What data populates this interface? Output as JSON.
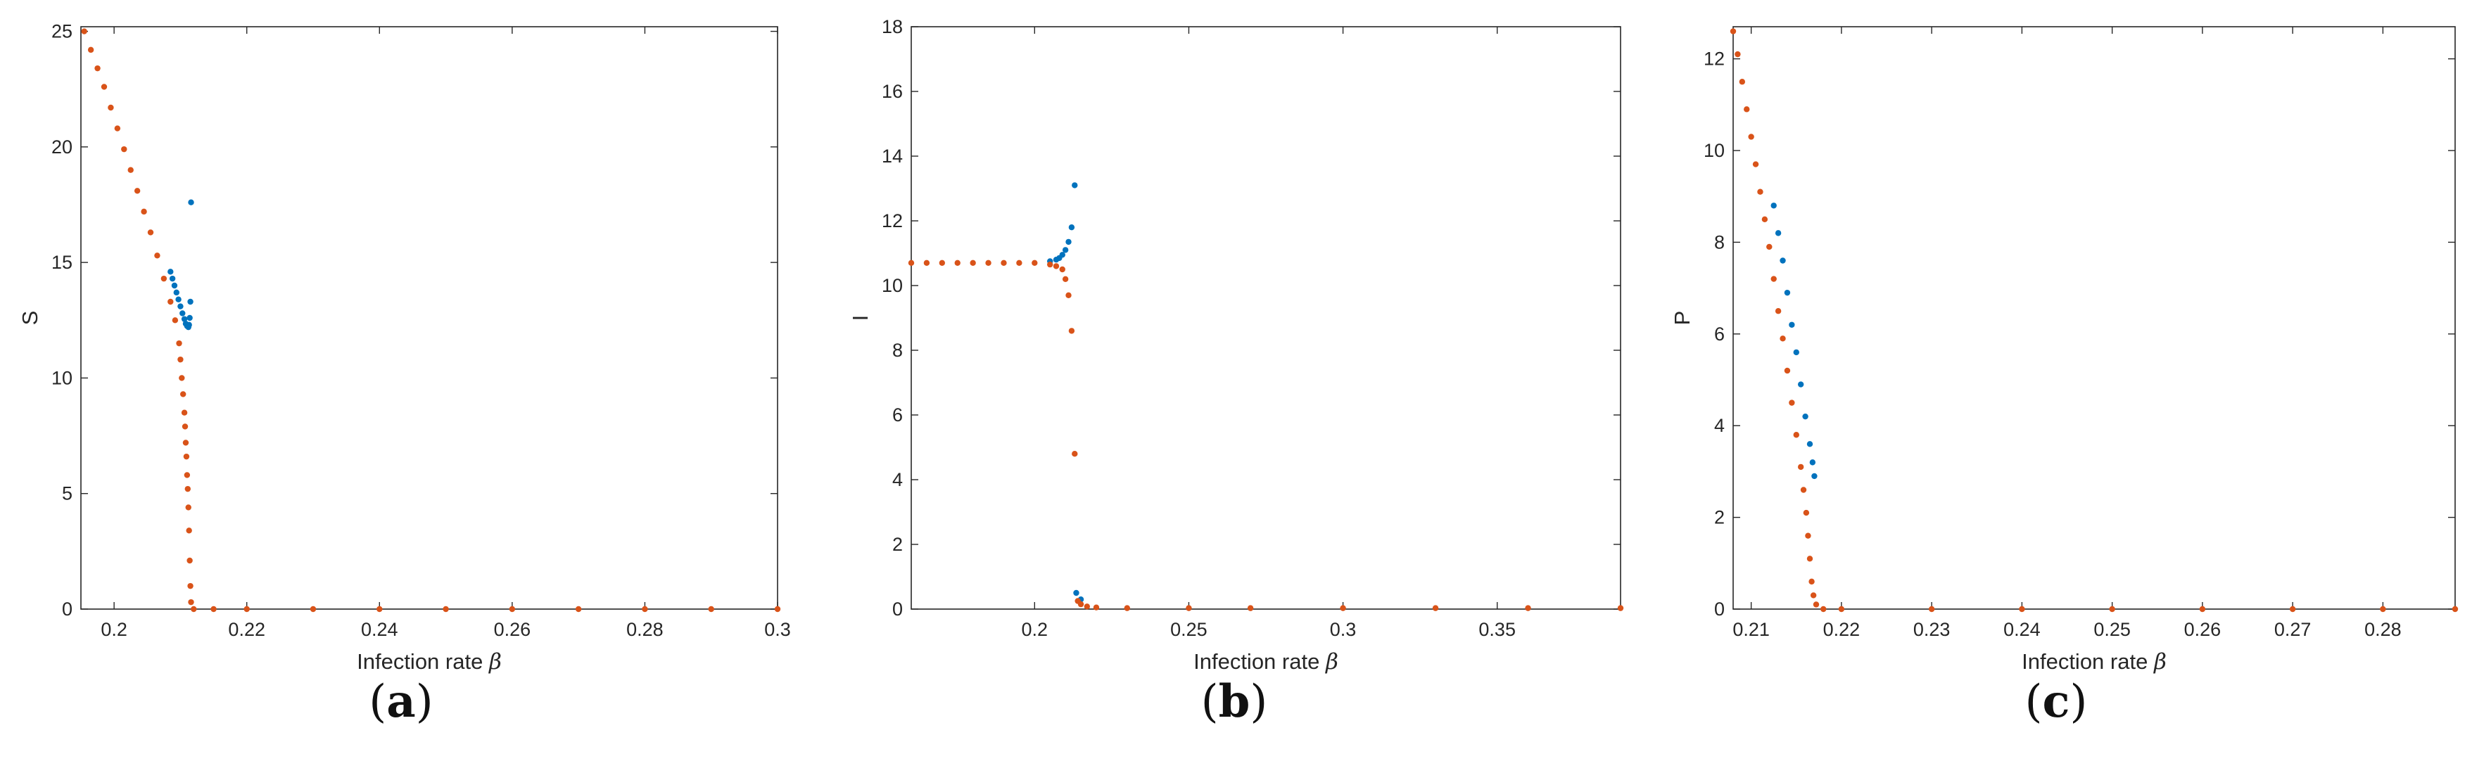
{
  "figure": {
    "colors": {
      "series_1": "#0072BD",
      "series_2": "#D95319",
      "axes": "#262626"
    }
  },
  "chart_data": [
    {
      "id": "a",
      "type": "scatter",
      "panel_label": "a",
      "xlabel": "Infection rate",
      "xlabel_symbol": "β",
      "ylabel": "S",
      "xlim": [
        0.195,
        0.3
      ],
      "ylim": [
        0,
        25.2
      ],
      "xticks": [
        0.2,
        0.22,
        0.24,
        0.26,
        0.28,
        0.3
      ],
      "xtick_labels": [
        "0.2",
        "0.22",
        "0.24",
        "0.26",
        "0.28",
        "0.3"
      ],
      "yticks": [
        0,
        5,
        10,
        15,
        20,
        25
      ],
      "ytick_labels": [
        "0",
        "5",
        "10",
        "15",
        "20",
        "25"
      ],
      "grid": false,
      "series": [
        {
          "color": "#0072BD",
          "x": [
            0.2085,
            0.2088,
            0.2091,
            0.2094,
            0.2097,
            0.21,
            0.2103,
            0.2106,
            0.2108,
            0.211,
            0.2112,
            0.2113,
            0.2114,
            0.2115,
            0.2116
          ],
          "y": [
            14.6,
            14.3,
            14.0,
            13.7,
            13.4,
            13.1,
            12.8,
            12.55,
            12.35,
            12.25,
            12.2,
            12.3,
            12.6,
            13.3,
            17.6
          ]
        },
        {
          "color": "#D95319",
          "x": [
            0.1955,
            0.1965,
            0.1975,
            0.1985,
            0.1995,
            0.2005,
            0.2015,
            0.2025,
            0.2035,
            0.2045,
            0.2055,
            0.2065,
            0.2075,
            0.2085,
            0.2092,
            0.2098,
            0.21,
            0.2102,
            0.2104,
            0.2106,
            0.2107,
            0.2108,
            0.2109,
            0.211,
            0.2111,
            0.2112,
            0.2113,
            0.2114,
            0.2115,
            0.2116,
            0.212,
            0.215,
            0.22,
            0.23,
            0.24,
            0.25,
            0.26,
            0.27,
            0.28,
            0.29,
            0.3
          ],
          "y": [
            25.0,
            24.2,
            23.4,
            22.6,
            21.7,
            20.8,
            19.9,
            19.0,
            18.1,
            17.2,
            16.3,
            15.3,
            14.3,
            13.3,
            12.5,
            11.5,
            10.8,
            10.0,
            9.3,
            8.5,
            7.9,
            7.2,
            6.6,
            5.8,
            5.2,
            4.4,
            3.4,
            2.1,
            1.0,
            0.3,
            0.0,
            0.0,
            0.0,
            0.0,
            0.0,
            0.0,
            0.0,
            0.0,
            0.0,
            0.0,
            0.0
          ]
        }
      ]
    },
    {
      "id": "b",
      "type": "scatter",
      "panel_label": "b",
      "xlabel": "Infection rate",
      "xlabel_symbol": "β",
      "ylabel": "I",
      "xlim": [
        0.16,
        0.39
      ],
      "ylim": [
        0,
        18
      ],
      "xticks": [
        0.2,
        0.25,
        0.3,
        0.35
      ],
      "xtick_labels": [
        "0.2",
        "0.25",
        "0.3",
        "0.35"
      ],
      "yticks": [
        0,
        2,
        4,
        6,
        8,
        10,
        12,
        14,
        16,
        18
      ],
      "ytick_labels": [
        "0",
        "2",
        "4",
        "6",
        "8",
        "10",
        "12",
        "14",
        "16",
        "18"
      ],
      "grid": false,
      "series": [
        {
          "color": "#0072BD",
          "x": [
            0.205,
            0.207,
            0.208,
            0.209,
            0.21,
            0.211,
            0.212,
            0.213,
            0.2135,
            0.215
          ],
          "y": [
            10.75,
            10.8,
            10.85,
            10.95,
            11.1,
            11.35,
            11.8,
            13.1,
            0.5,
            0.3
          ]
        },
        {
          "color": "#D95319",
          "x": [
            0.16,
            0.165,
            0.17,
            0.175,
            0.18,
            0.185,
            0.19,
            0.195,
            0.2,
            0.205,
            0.207,
            0.209,
            0.21,
            0.211,
            0.212,
            0.213,
            0.214,
            0.215,
            0.217,
            0.22,
            0.23,
            0.25,
            0.27,
            0.3,
            0.33,
            0.36,
            0.39
          ],
          "y": [
            10.7,
            10.7,
            10.7,
            10.7,
            10.7,
            10.7,
            10.7,
            10.7,
            10.7,
            10.65,
            10.6,
            10.5,
            10.2,
            9.7,
            8.6,
            4.8,
            0.25,
            0.15,
            0.08,
            0.05,
            0.03,
            0.03,
            0.03,
            0.03,
            0.03,
            0.03,
            0.03
          ]
        }
      ]
    },
    {
      "id": "c",
      "type": "scatter",
      "panel_label": "c",
      "xlabel": "Infection rate",
      "xlabel_symbol": "β",
      "ylabel": "P",
      "xlim": [
        0.208,
        0.288
      ],
      "ylim": [
        0,
        12.7
      ],
      "xticks": [
        0.21,
        0.22,
        0.23,
        0.24,
        0.25,
        0.26,
        0.27,
        0.28
      ],
      "xtick_labels": [
        "0.21",
        "0.22",
        "0.23",
        "0.24",
        "0.25",
        "0.26",
        "0.27",
        "0.28"
      ],
      "yticks": [
        0,
        2,
        4,
        6,
        8,
        10,
        12
      ],
      "ytick_labels": [
        "0",
        "2",
        "4",
        "6",
        "8",
        "10",
        "12"
      ],
      "grid": false,
      "series": [
        {
          "color": "#0072BD",
          "x": [
            0.2125,
            0.213,
            0.2135,
            0.214,
            0.2145,
            0.215,
            0.2155,
            0.216,
            0.2165,
            0.2168,
            0.217
          ],
          "y": [
            8.8,
            8.2,
            7.6,
            6.9,
            6.2,
            5.6,
            4.9,
            4.2,
            3.6,
            3.2,
            2.9
          ]
        },
        {
          "color": "#D95319",
          "x": [
            0.208,
            0.2085,
            0.209,
            0.2095,
            0.21,
            0.2105,
            0.211,
            0.2115,
            0.212,
            0.2125,
            0.213,
            0.2135,
            0.214,
            0.2145,
            0.215,
            0.2155,
            0.2158,
            0.2161,
            0.2163,
            0.2165,
            0.2167,
            0.2169,
            0.2172,
            0.218,
            0.22,
            0.23,
            0.24,
            0.25,
            0.26,
            0.27,
            0.28,
            0.288
          ],
          "y": [
            12.6,
            12.1,
            11.5,
            10.9,
            10.3,
            9.7,
            9.1,
            8.5,
            7.9,
            7.2,
            6.5,
            5.9,
            5.2,
            4.5,
            3.8,
            3.1,
            2.6,
            2.1,
            1.6,
            1.1,
            0.6,
            0.3,
            0.1,
            0.0,
            0.0,
            0.0,
            0.0,
            0.0,
            0.0,
            0.0,
            0.0,
            0.0
          ]
        }
      ]
    }
  ]
}
